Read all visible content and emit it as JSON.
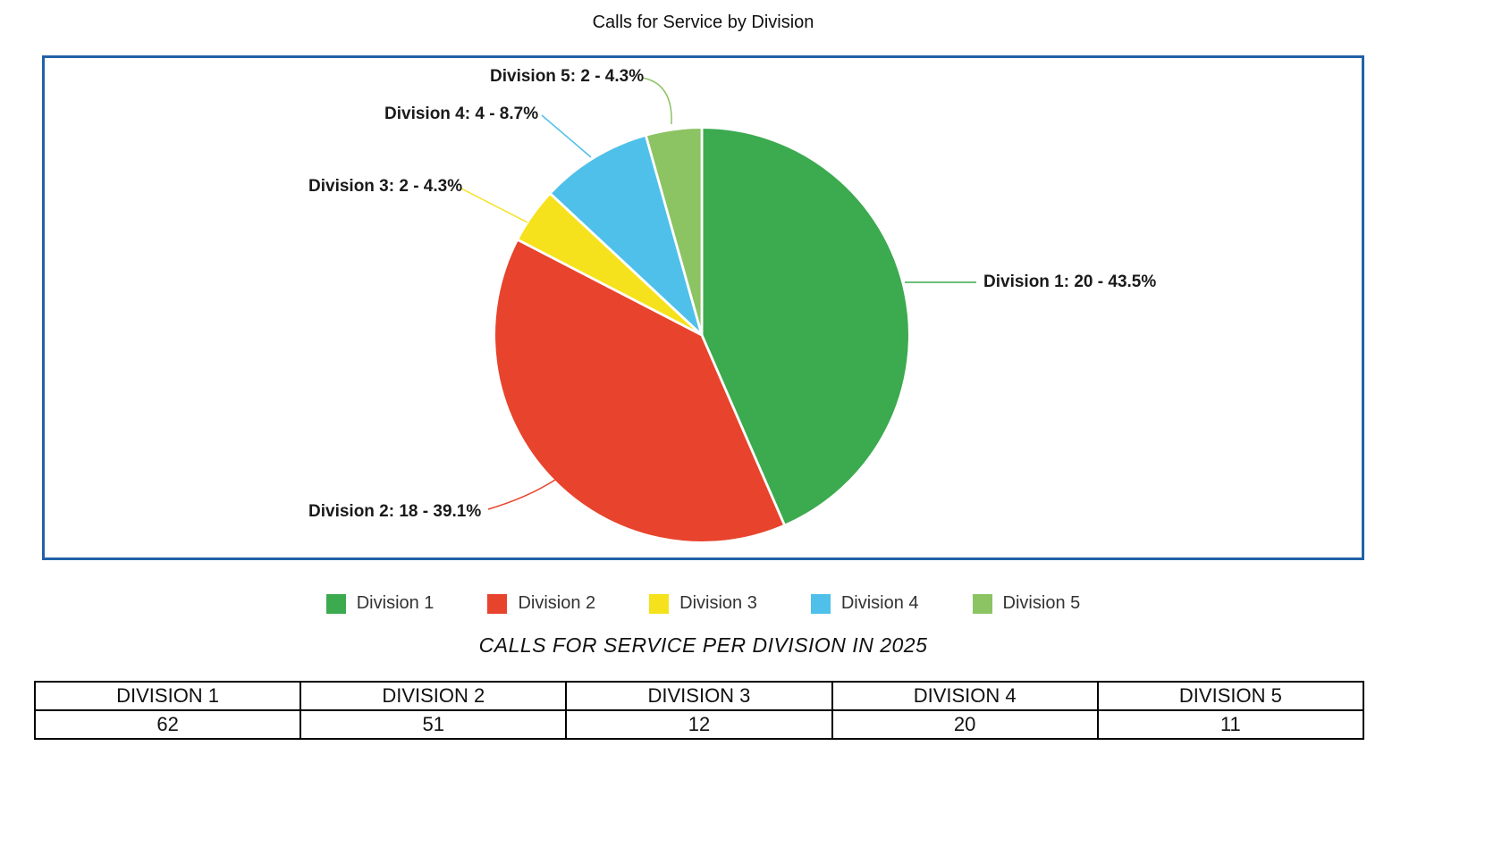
{
  "chart_data": {
    "type": "pie",
    "title": "Calls for Service by Division",
    "legend_position": "bottom",
    "start_angle": "top",
    "direction": "clockwise",
    "slices": [
      {
        "name": "Division 1",
        "value": 20,
        "percent": "43.5%",
        "callout": "Division 1: 20 - 43.5%",
        "color": "#3caa4f"
      },
      {
        "name": "Division 2",
        "value": 18,
        "percent": "39.1%",
        "callout": "Division 2: 18 - 39.1%",
        "color": "#e8432c"
      },
      {
        "name": "Division 3",
        "value": 2,
        "percent": "4.3%",
        "callout": "Division 3: 2 - 4.3%",
        "color": "#f6e21c"
      },
      {
        "name": "Division 4",
        "value": 4,
        "percent": "8.7%",
        "callout": "Division 4: 4 - 8.7%",
        "color": "#4fc0e9"
      },
      {
        "name": "Division 5",
        "value": 2,
        "percent": "4.3%",
        "callout": "Division 5: 2 - 4.3%",
        "color": "#8cc363"
      }
    ]
  },
  "table": {
    "caption": "CALLS FOR SERVICE PER DIVISION IN 2025",
    "headers": [
      "DIVISION 1",
      "DIVISION 2",
      "DIVISION 3",
      "DIVISION 4",
      "DIVISION 5"
    ],
    "rows": [
      [
        "62",
        "51",
        "12",
        "20",
        "11"
      ]
    ]
  },
  "colors": {
    "panel_border": "#2161a7",
    "table_border": "#000000"
  }
}
